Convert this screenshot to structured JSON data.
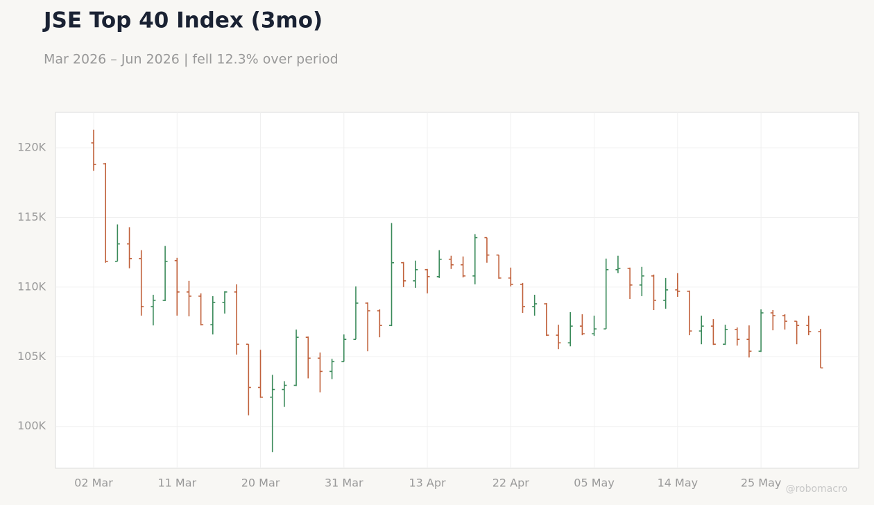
{
  "chart_data": {
    "type": "ohlc",
    "title": "JSE Top 40 Index (3mo)",
    "subtitle": "Mar 2026 – Jun 2026 | fell 12.3% over period",
    "watermark": "@robomacro",
    "categories": [
      "02 Mar",
      null,
      null,
      null,
      null,
      null,
      null,
      "11 Mar",
      null,
      null,
      null,
      null,
      null,
      null,
      "20 Mar",
      null,
      null,
      null,
      null,
      null,
      null,
      "31 Mar",
      null,
      null,
      null,
      null,
      null,
      null,
      "13 Apr",
      null,
      null,
      null,
      null,
      null,
      null,
      "22 Apr",
      null,
      null,
      null,
      null,
      null,
      null,
      "05 May",
      null,
      null,
      null,
      null,
      null,
      null,
      "14 May",
      null,
      null,
      null,
      null,
      null,
      null,
      "25 May",
      null,
      null,
      null,
      null,
      null
    ],
    "open": [
      120350,
      118850,
      111850,
      113100,
      112050,
      108600,
      109050,
      111900,
      109650,
      109350,
      107300,
      108900,
      109650,
      105900,
      102800,
      102100,
      102650,
      102950,
      106400,
      104900,
      103950,
      104650,
      106250,
      108850,
      108300,
      107250,
      111750,
      110450,
      111250,
      110750,
      112000,
      111600,
      110800,
      113550,
      112300,
      110650,
      110200,
      108600,
      108800,
      106550,
      106000,
      107200,
      106650,
      107000,
      111250,
      111350,
      110150,
      110800,
      109050,
      109800,
      109700,
      106850,
      107200,
      105900,
      106950,
      106250,
      105400,
      108150,
      107950,
      107550,
      107250,
      106800
    ],
    "high": [
      121300,
      118900,
      114500,
      114300,
      112650,
      109450,
      112950,
      112100,
      110450,
      109550,
      109350,
      109700,
      110200,
      105900,
      105500,
      103700,
      103250,
      106950,
      106450,
      105300,
      104850,
      106600,
      110050,
      108900,
      108400,
      114600,
      111800,
      111900,
      111300,
      112650,
      112250,
      112200,
      113800,
      113550,
      112300,
      111400,
      110300,
      109450,
      108850,
      107300,
      108200,
      108050,
      107950,
      112050,
      112250,
      111400,
      111450,
      110900,
      110650,
      111000,
      109750,
      107950,
      107700,
      107300,
      107100,
      107250,
      108400,
      108350,
      108050,
      107550,
      107950,
      107000
    ],
    "low": [
      118350,
      111750,
      111850,
      111350,
      107950,
      107250,
      109000,
      107950,
      107900,
      107250,
      106600,
      108100,
      105150,
      100800,
      102050,
      98150,
      101400,
      102900,
      103450,
      102450,
      103400,
      104650,
      106250,
      105400,
      106400,
      107200,
      110000,
      109950,
      109550,
      110650,
      111300,
      110700,
      110200,
      111750,
      110600,
      110050,
      108150,
      107950,
      106500,
      105550,
      105750,
      106550,
      106500,
      107000,
      111000,
      109150,
      109350,
      108350,
      108450,
      109300,
      106550,
      105900,
      105850,
      105850,
      105800,
      104950,
      105350,
      106900,
      106950,
      105900,
      106550,
      104200
    ],
    "close": [
      118800,
      111850,
      113100,
      112050,
      108600,
      109050,
      111850,
      109650,
      109350,
      107300,
      108900,
      109650,
      105900,
      102800,
      102100,
      102650,
      102950,
      106400,
      104900,
      103950,
      104650,
      106250,
      108850,
      108300,
      107250,
      111750,
      110450,
      111250,
      110750,
      112000,
      111600,
      110800,
      113550,
      112300,
      110650,
      110200,
      108600,
      108800,
      106550,
      106000,
      107200,
      106650,
      107000,
      111250,
      111350,
      110150,
      110800,
      109050,
      109800,
      109700,
      106850,
      107200,
      105900,
      106950,
      106250,
      105400,
      108150,
      107950,
      107550,
      107250,
      106800,
      104200
    ],
    "up_color": "#3a8a5a",
    "down_color": "#c0603a",
    "ylim": [
      97000,
      122540
    ],
    "yticks": [
      {
        "value": 100000,
        "label": "100K"
      },
      {
        "value": 105000,
        "label": "105K"
      },
      {
        "value": 110000,
        "label": "110K"
      },
      {
        "value": 115000,
        "label": "115K"
      },
      {
        "value": 120000,
        "label": "120K"
      }
    ],
    "grid": true
  }
}
